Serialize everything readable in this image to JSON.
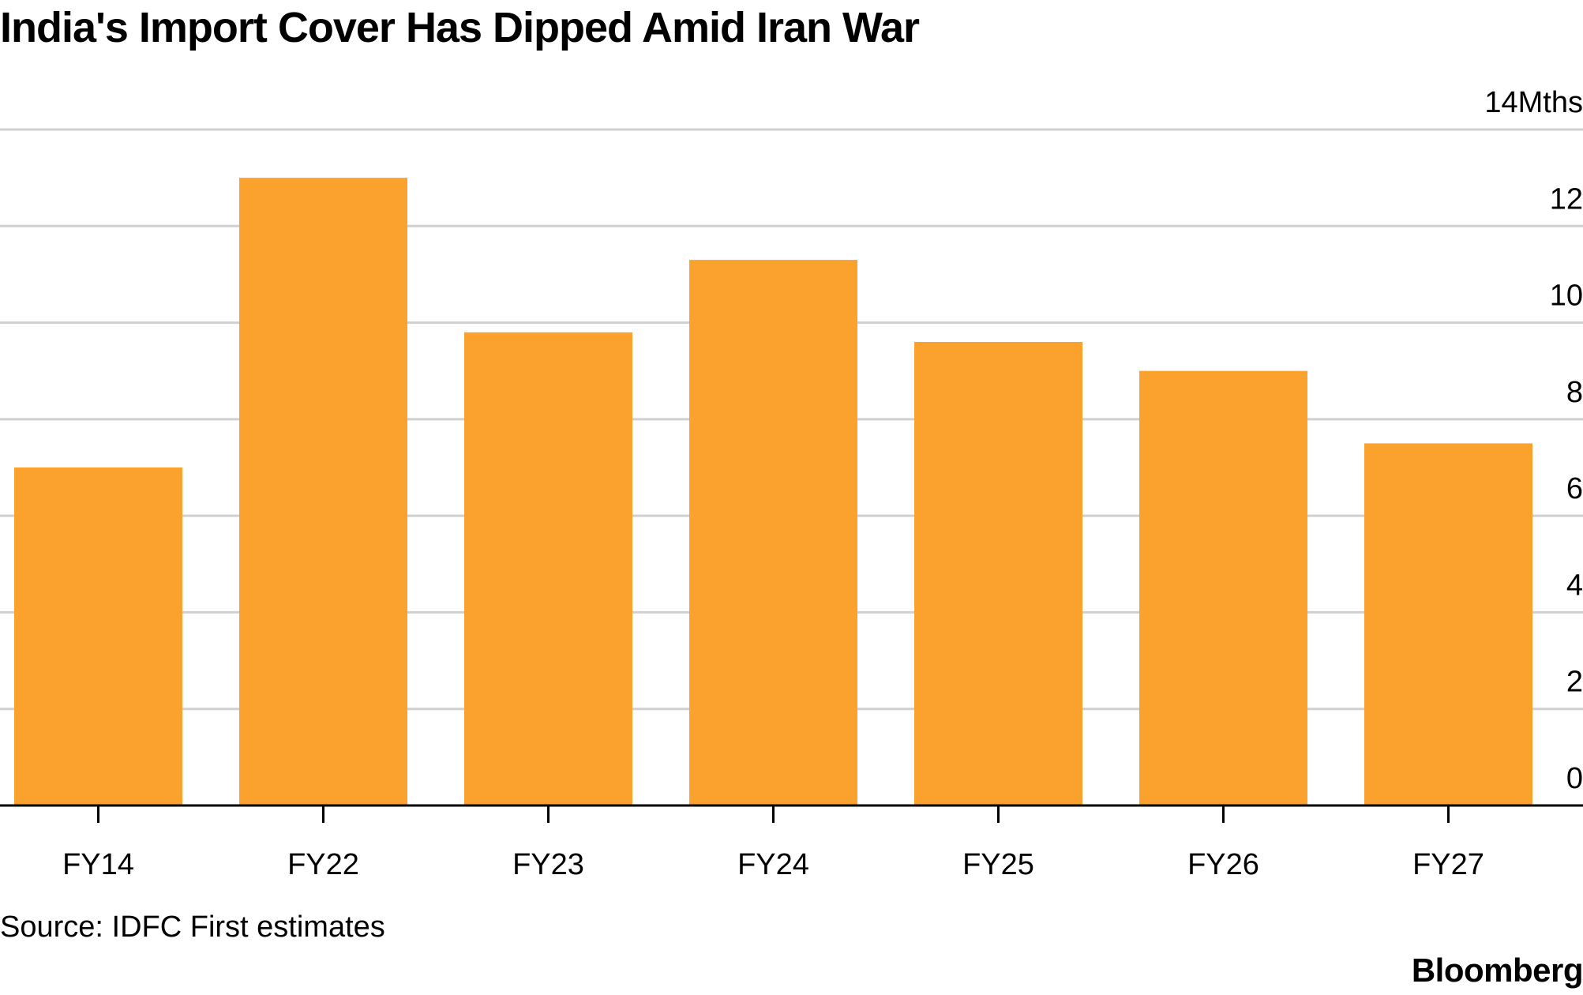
{
  "title": "India's Import Cover Has Dipped Amid Iran War",
  "source": "Source: IDFC First estimates",
  "brand": "Bloomberg",
  "colors": {
    "bar": "#FBA12D",
    "grid": "#d0d0d0",
    "axis": "#000000"
  },
  "chart_data": {
    "type": "bar",
    "categories": [
      "FY14",
      "FY22",
      "FY23",
      "FY24",
      "FY25",
      "FY26",
      "FY27"
    ],
    "values": [
      7.0,
      13.0,
      9.8,
      11.3,
      9.6,
      9.0,
      7.5
    ],
    "ylim": [
      0,
      14
    ],
    "yticks": [
      0,
      2,
      4,
      6,
      8,
      10,
      12,
      14
    ],
    "ytick_labels": [
      "0",
      "2",
      "4",
      "6",
      "8",
      "10",
      "12",
      "14Mths"
    ],
    "yaxis_position": "right",
    "grid": true,
    "legend": "none"
  }
}
